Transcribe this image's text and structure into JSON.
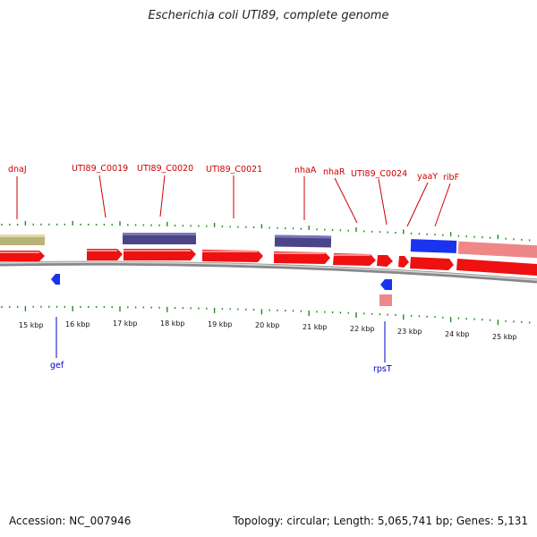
{
  "title": "Escherichia coli UTI89, complete genome",
  "footer": {
    "accession": "Accession: NC_007946",
    "summary": "Topology: circular; Length: 5,065,741 bp; Genes: 5,131"
  },
  "colors": {
    "forward_gene": "#ee1111",
    "forward_gene_light": "#ee8888",
    "reverse_gene": "#1a33ee",
    "feature_purple": "#4a4488",
    "feature_olive": "#b8b478",
    "label_forward": "#cc0000",
    "label_reverse": "#0000cc",
    "tick": "#228b22",
    "backbone": "#999999"
  },
  "axis_labels": [
    "15 kbp",
    "16 kbp",
    "17 kbp",
    "18 kbp",
    "19 kbp",
    "20 kbp",
    "21 kbp",
    "22 kbp",
    "23 kbp",
    "24 kbp",
    "25 kbp"
  ],
  "top_labels": [
    "dnaJ",
    "UTI89_C0019",
    "UTI89_C0020",
    "UTI89_C0021",
    "nhaA",
    "nhaR",
    "UTI89_C0024",
    "yaaY",
    "ribF"
  ],
  "bottom_labels": [
    "gef",
    "rpsT"
  ]
}
